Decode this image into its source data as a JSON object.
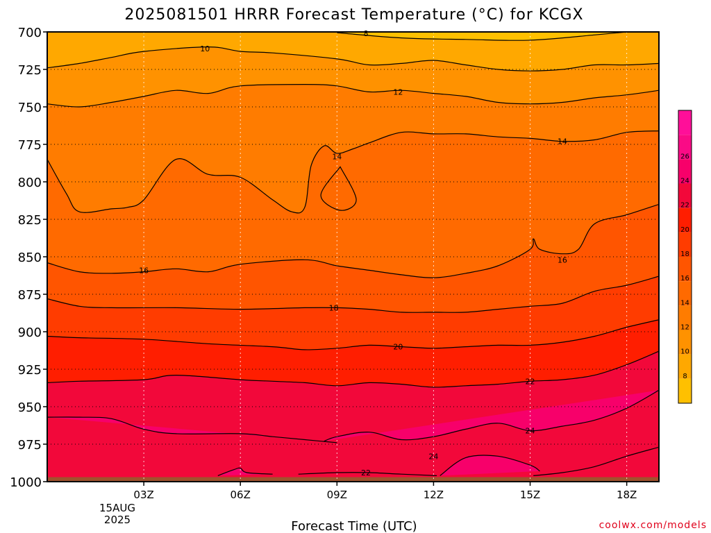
{
  "chart_data": {
    "type": "heatmap",
    "subtype": "filled-contour time-height cross section",
    "title": "2025081501 HRRR Forecast Temperature (°C) for KCGX",
    "xlabel": "Forecast Time (UTC)",
    "ylabel": "",
    "x_unit": "hours after 00Z 15 Aug 2025",
    "xlim": [
      0,
      19
    ],
    "ylim": [
      1000,
      700
    ],
    "y_scale": "pressure (hPa), decreasing upward",
    "x_ticks": [
      {
        "x": 3,
        "label": "03Z"
      },
      {
        "x": 6,
        "label": "06Z"
      },
      {
        "x": 9,
        "label": "09Z"
      },
      {
        "x": 12,
        "label": "12Z"
      },
      {
        "x": 15,
        "label": "15Z"
      },
      {
        "x": 18,
        "label": "18Z"
      }
    ],
    "date_label_lines": [
      "15AUG",
      "2025"
    ],
    "y_ticks": [
      700,
      725,
      750,
      775,
      800,
      825,
      850,
      875,
      900,
      925,
      950,
      975,
      1000
    ],
    "grid": true,
    "ground_surface_hpa": 997,
    "colorbar": {
      "location": "right",
      "levels": [
        6,
        8,
        10,
        12,
        14,
        16,
        18,
        20,
        22,
        24,
        26,
        28
      ],
      "tick_labels": [
        8,
        10,
        12,
        14,
        16,
        18,
        20,
        22,
        24,
        26
      ],
      "colors": [
        "#ffc000",
        "#ffa800",
        "#ff9200",
        "#ff7c00",
        "#ff6a00",
        "#ff5500",
        "#ff3c00",
        "#ff1e00",
        "#f2083a",
        "#f7006a",
        "#fa0b86",
        "#ff0f99"
      ]
    },
    "isotherms": [
      {
        "value": 8,
        "points": [
          [
            9,
            700.5
          ],
          [
            11,
            704
          ],
          [
            13,
            705
          ],
          [
            15,
            705.5
          ],
          [
            17,
            702
          ],
          [
            18,
            700
          ]
        ]
      },
      {
        "value": 10,
        "points": [
          [
            0,
            724
          ],
          [
            1,
            721
          ],
          [
            2,
            717
          ],
          [
            3,
            713
          ],
          [
            5,
            710
          ],
          [
            6,
            713
          ],
          [
            7,
            714
          ],
          [
            9,
            718
          ],
          [
            10,
            722
          ],
          [
            11,
            721
          ],
          [
            12,
            719
          ],
          [
            13,
            722
          ],
          [
            14,
            725
          ],
          [
            15,
            726
          ],
          [
            16,
            725
          ],
          [
            17,
            722
          ],
          [
            18,
            722
          ],
          [
            19,
            721
          ]
        ]
      },
      {
        "value": 12,
        "points": [
          [
            0,
            748
          ],
          [
            1,
            750
          ],
          [
            2,
            747
          ],
          [
            3,
            743
          ],
          [
            4,
            739
          ],
          [
            5,
            741
          ],
          [
            6,
            736
          ],
          [
            8,
            735
          ],
          [
            9,
            736
          ],
          [
            10,
            740
          ],
          [
            11,
            739
          ],
          [
            12,
            741
          ],
          [
            13,
            743
          ],
          [
            14,
            747
          ],
          [
            15,
            748
          ],
          [
            16,
            747
          ],
          [
            17,
            744
          ],
          [
            18,
            742
          ],
          [
            19,
            739
          ]
        ]
      },
      {
        "value": 14,
        "points": [
          [
            0,
            785
          ],
          [
            0.6,
            808
          ],
          [
            1,
            820
          ],
          [
            2,
            818
          ],
          [
            2.5,
            817
          ],
          [
            3,
            812
          ],
          [
            4,
            785
          ],
          [
            5,
            795
          ],
          [
            6,
            797
          ],
          [
            7,
            812
          ],
          [
            7.6,
            820
          ],
          [
            8,
            817
          ],
          [
            8.2,
            789
          ],
          [
            8.6,
            776
          ],
          [
            9,
            781
          ],
          [
            9.5,
            778
          ],
          [
            10,
            774
          ],
          [
            11,
            767
          ],
          [
            12,
            768
          ],
          [
            13,
            768
          ],
          [
            14,
            770
          ],
          [
            15,
            771
          ],
          [
            16,
            773
          ],
          [
            17,
            772
          ],
          [
            18,
            767
          ],
          [
            19,
            766
          ]
        ]
      },
      {
        "value": 14,
        "closed": true,
        "points": [
          [
            9.1,
            790
          ],
          [
            9.6,
            812
          ],
          [
            9.1,
            819
          ],
          [
            8.5,
            809
          ],
          [
            9.1,
            790
          ]
        ]
      },
      {
        "value": 16,
        "points": [
          [
            0,
            854
          ],
          [
            1,
            860
          ],
          [
            2,
            861
          ],
          [
            3,
            860
          ],
          [
            4,
            858
          ],
          [
            5,
            860
          ],
          [
            6,
            855
          ],
          [
            8,
            852
          ],
          [
            9,
            856
          ],
          [
            10,
            859
          ],
          [
            11,
            862
          ],
          [
            12,
            864
          ],
          [
            13,
            861
          ],
          [
            14,
            856
          ],
          [
            15,
            845
          ],
          [
            15.1,
            838
          ],
          [
            15.3,
            845
          ],
          [
            16,
            848
          ],
          [
            16.5,
            845
          ],
          [
            17,
            828
          ],
          [
            18,
            822
          ],
          [
            19,
            815
          ]
        ]
      },
      {
        "value": 18,
        "points": [
          [
            0,
            878
          ],
          [
            1,
            883
          ],
          [
            2,
            884
          ],
          [
            4,
            884
          ],
          [
            6,
            885
          ],
          [
            8,
            884
          ],
          [
            9,
            884
          ],
          [
            10,
            885
          ],
          [
            11,
            887
          ],
          [
            12,
            887
          ],
          [
            13,
            887
          ],
          [
            14,
            885
          ],
          [
            15,
            883
          ],
          [
            16,
            881
          ],
          [
            17,
            873
          ],
          [
            18,
            869
          ],
          [
            19,
            863
          ]
        ]
      },
      {
        "value": 20,
        "points": [
          [
            0,
            903
          ],
          [
            1,
            904
          ],
          [
            3,
            905
          ],
          [
            5,
            908
          ],
          [
            7,
            910
          ],
          [
            8,
            912
          ],
          [
            9,
            911
          ],
          [
            10,
            909
          ],
          [
            11,
            910
          ],
          [
            12,
            911
          ],
          [
            13,
            910
          ],
          [
            14,
            909
          ],
          [
            15,
            909
          ],
          [
            16,
            907
          ],
          [
            17,
            903
          ],
          [
            18,
            897
          ],
          [
            19,
            892
          ]
        ]
      },
      {
        "value": 22,
        "points": [
          [
            0,
            934
          ],
          [
            1,
            933
          ],
          [
            3,
            932
          ],
          [
            4,
            929
          ],
          [
            6,
            932
          ],
          [
            7,
            933
          ],
          [
            8,
            934
          ],
          [
            9,
            936
          ],
          [
            10,
            934
          ],
          [
            11,
            935
          ],
          [
            12,
            937
          ],
          [
            13,
            936
          ],
          [
            14,
            935
          ],
          [
            15,
            933
          ],
          [
            16,
            932
          ],
          [
            17,
            929
          ],
          [
            18,
            922
          ],
          [
            19,
            913
          ]
        ]
      },
      {
        "value": 24,
        "points": [
          [
            0,
            957
          ],
          [
            1,
            957
          ],
          [
            2,
            958
          ],
          [
            3,
            965
          ],
          [
            4,
            968
          ],
          [
            6,
            968
          ],
          [
            7,
            970
          ],
          [
            8,
            972
          ],
          [
            8.5,
            973
          ],
          [
            9,
            974
          ]
        ]
      },
      {
        "value": 24,
        "points": [
          [
            8.6,
            973
          ],
          [
            9,
            970
          ],
          [
            10,
            967
          ],
          [
            11,
            972
          ],
          [
            12,
            970
          ],
          [
            13,
            965
          ],
          [
            14,
            961
          ],
          [
            15,
            966
          ],
          [
            16,
            963
          ],
          [
            17,
            959
          ],
          [
            18,
            951
          ],
          [
            19,
            939
          ]
        ]
      },
      {
        "value": 24,
        "points": [
          [
            12.2,
            996
          ],
          [
            13,
            984
          ],
          [
            14,
            983
          ],
          [
            15,
            989
          ],
          [
            15.3,
            993
          ]
        ]
      },
      {
        "value": 22,
        "points": [
          [
            15.1,
            996
          ],
          [
            16,
            994
          ],
          [
            17,
            990
          ],
          [
            18,
            983
          ],
          [
            19,
            977
          ]
        ]
      },
      {
        "value": 22,
        "points": [
          [
            7.8,
            995
          ],
          [
            9,
            994
          ],
          [
            10,
            994
          ],
          [
            11,
            995
          ],
          [
            12.1,
            996
          ]
        ]
      },
      {
        "value": 24,
        "points": [
          [
            5.3,
            996
          ],
          [
            5.8,
            992
          ],
          [
            6,
            991
          ],
          [
            6.2,
            994
          ],
          [
            7,
            995
          ]
        ]
      }
    ],
    "contour_labels": [
      {
        "text": "8",
        "x": 9.9,
        "y": 701
      },
      {
        "text": "10",
        "x": 4.9,
        "y": 711
      },
      {
        "text": "12",
        "x": 10.9,
        "y": 740
      },
      {
        "text": "14",
        "x": 9.0,
        "y": 783
      },
      {
        "text": "14",
        "x": 16.0,
        "y": 773
      },
      {
        "text": "16",
        "x": 3.0,
        "y": 859
      },
      {
        "text": "16",
        "x": 16.0,
        "y": 852
      },
      {
        "text": "18",
        "x": 8.9,
        "y": 884
      },
      {
        "text": "20",
        "x": 10.9,
        "y": 910
      },
      {
        "text": "22",
        "x": 15.0,
        "y": 933
      },
      {
        "text": "24",
        "x": 15.0,
        "y": 966
      },
      {
        "text": "24",
        "x": 12.0,
        "y": 983
      },
      {
        "text": "22",
        "x": 9.9,
        "y": 994
      }
    ]
  },
  "credit": "coolwx.com/models",
  "colors": {
    "ground": "#a0522d",
    "grid": "#000000",
    "credit": "#e0001a"
  }
}
